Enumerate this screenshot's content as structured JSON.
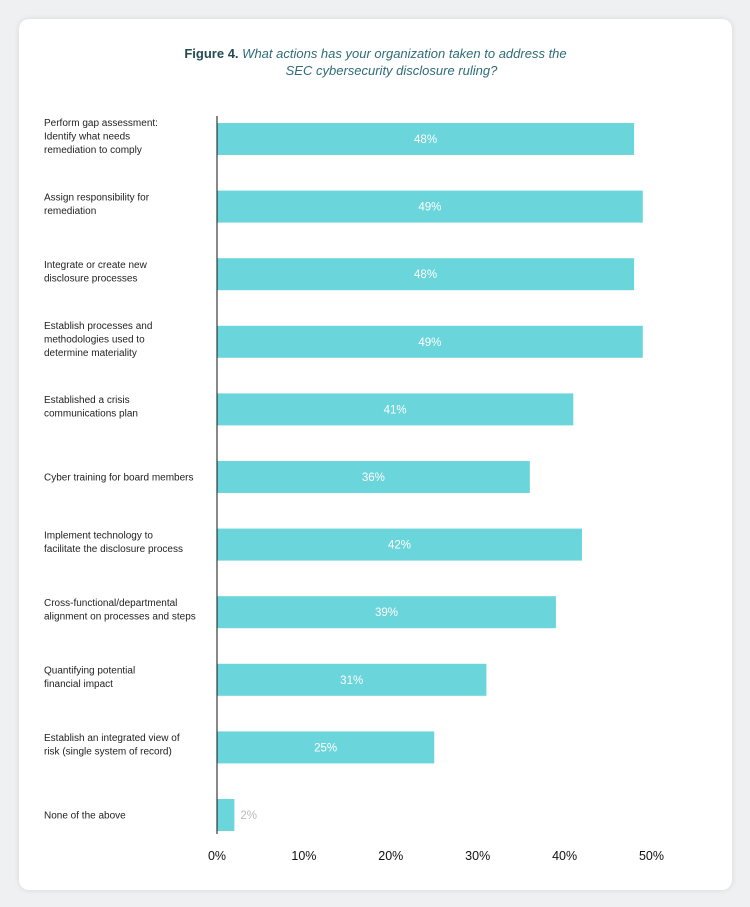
{
  "figure": {
    "label": "Figure 4.",
    "question_line1": "What actions has your organization taken to address the",
    "question_line2": "SEC cybersecurity disclosure ruling?"
  },
  "colors": {
    "bar": "#6ad5db",
    "axis": "#111111"
  },
  "chart_data": {
    "type": "bar",
    "orientation": "horizontal",
    "categories": [
      [
        "Perform gap assessment:",
        "Identify what needs",
        "remediation to comply"
      ],
      [
        "Assign responsibility for",
        "remediation"
      ],
      [
        "Integrate or create new",
        "disclosure processes"
      ],
      [
        "Establish processes and",
        "methodologies used to",
        "determine materiality"
      ],
      [
        "Established a crisis",
        "communications plan"
      ],
      [
        "Cyber training for board members"
      ],
      [
        "Implement technology to",
        "facilitate the disclosure process"
      ],
      [
        "Cross-functional/departmental",
        "alignment on processes and steps"
      ],
      [
        "Quantifying potential",
        "financial impact"
      ],
      [
        "Establish an integrated view of",
        "risk (single system of record)"
      ],
      [
        "None of the above"
      ]
    ],
    "values": [
      48,
      49,
      48,
      49,
      41,
      36,
      42,
      39,
      31,
      25,
      2
    ],
    "value_labels": [
      "48%",
      "49%",
      "48%",
      "49%",
      "41%",
      "36%",
      "42%",
      "39%",
      "31%",
      "25%",
      "2%"
    ],
    "xlim": [
      0,
      50
    ],
    "xticks": [
      0,
      10,
      20,
      30,
      40,
      50
    ],
    "xtick_labels": [
      "0%",
      "10%",
      "20%",
      "30%",
      "40%",
      "50%"
    ],
    "grid": false,
    "legend": "none"
  }
}
